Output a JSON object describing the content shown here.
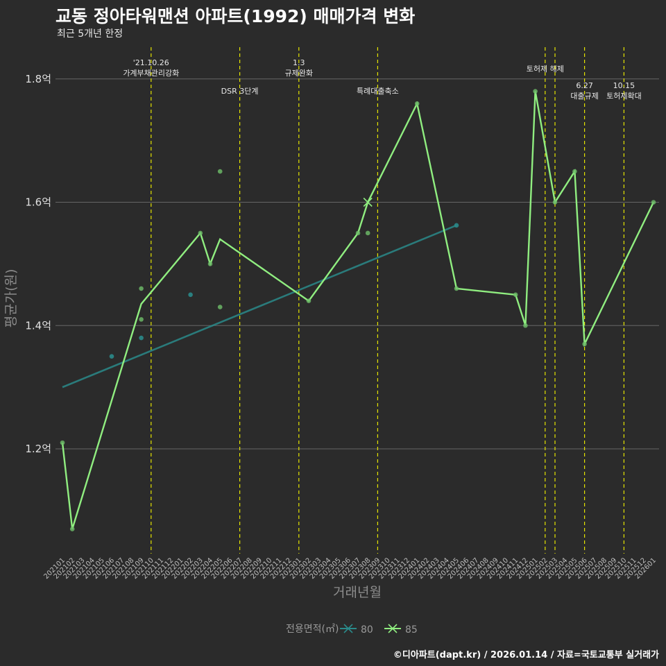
{
  "header": {
    "title": "교동 정아타워맨션 아파트(1992) 매매가격 변화",
    "subtitle": "최근 5개년 한정"
  },
  "caption": "©디아파트(dapt.kr) / 2026.01.14 / 자료=국토교통부 실거래가",
  "colors": {
    "background": "#2b2b2b",
    "grid": "#666666",
    "event_line": "#e5e500",
    "series_80": "#2a8a8a",
    "series_85": "#90ee80"
  },
  "chart_data": {
    "type": "line",
    "title": "교동 정아타워맨션 아파트(1992) 매매가격 변화",
    "xlabel": "거래년월",
    "ylabel": "평균가(원)",
    "ylim": [
      1.07,
      1.85
    ],
    "yticks": [
      {
        "value": 1.2,
        "label": "1.2억"
      },
      {
        "value": 1.4,
        "label": "1.4억"
      },
      {
        "value": 1.6,
        "label": "1.6억"
      },
      {
        "value": 1.8,
        "label": "1.8억"
      }
    ],
    "categories": [
      "202101",
      "202102",
      "202103",
      "202104",
      "202105",
      "202106",
      "202107",
      "202108",
      "202109",
      "202110",
      "202111",
      "202112",
      "202201",
      "202202",
      "202203",
      "202204",
      "202205",
      "202206",
      "202207",
      "202208",
      "202209",
      "202210",
      "202211",
      "202212",
      "202301",
      "202302",
      "202303",
      "202304",
      "202305",
      "202306",
      "202307",
      "202308",
      "202309",
      "202310",
      "202311",
      "202312",
      "202401",
      "202402",
      "202403",
      "202404",
      "202405",
      "202406",
      "202407",
      "202408",
      "202409",
      "202410",
      "202411",
      "202412",
      "202501",
      "202502",
      "202503",
      "202504",
      "202505",
      "202506",
      "202507",
      "202508",
      "202509",
      "202510",
      "202511",
      "202512",
      "202601"
    ],
    "events": [
      {
        "x": "202110",
        "lines": [
          "'21.10.26",
          "가계부채관리강화"
        ],
        "level": 1
      },
      {
        "x": "202207",
        "lines": [
          "DSR 3단계"
        ],
        "level": 2
      },
      {
        "x": "202301",
        "lines": [
          "1.3",
          "규제완화"
        ],
        "level": 1
      },
      {
        "x": "202309",
        "lines": [
          "특례대출축소"
        ],
        "level": 2
      },
      {
        "x": "202502",
        "lines": [
          "토허제 해제"
        ],
        "level": 1
      },
      {
        "x": "202503",
        "lines": [],
        "level": 1
      },
      {
        "x": "202506",
        "lines": [
          "6.27",
          "대출규제"
        ],
        "level": 3
      },
      {
        "x": "202510",
        "lines": [
          "10.15",
          "토허제확대"
        ],
        "level": 3
      }
    ],
    "series": [
      {
        "name": "80",
        "trend": [
          [
            "202101",
            1.3
          ],
          [
            "202405",
            1.5625
          ]
        ],
        "points": [
          [
            "202106",
            1.35
          ],
          [
            "202109",
            1.38
          ],
          [
            "202202",
            1.45
          ],
          [
            "202405",
            1.5625
          ]
        ]
      },
      {
        "name": "85",
        "line": [
          [
            "202101",
            1.21
          ],
          [
            "202102",
            1.07
          ],
          [
            "202109",
            1.435
          ],
          [
            "202203",
            1.55
          ],
          [
            "202204",
            1.5
          ],
          [
            "202205",
            1.54
          ],
          [
            "202302",
            1.44
          ],
          [
            "202307",
            1.55
          ],
          [
            "202308",
            1.6
          ],
          [
            "202401",
            1.76
          ],
          [
            "202405",
            1.46
          ],
          [
            "202411",
            1.45
          ],
          [
            "202412",
            1.4
          ],
          [
            "202501",
            1.78
          ],
          [
            "202503",
            1.6
          ],
          [
            "202505",
            1.65
          ],
          [
            "202506",
            1.37
          ],
          [
            "202601",
            1.6
          ]
        ],
        "points": [
          [
            "202101",
            1.21
          ],
          [
            "202102",
            1.07
          ],
          [
            "202109",
            1.46
          ],
          [
            "202109",
            1.41
          ],
          [
            "202203",
            1.55
          ],
          [
            "202204",
            1.5
          ],
          [
            "202205",
            1.65
          ],
          [
            "202205",
            1.43
          ],
          [
            "202302",
            1.44
          ],
          [
            "202307",
            1.55
          ],
          [
            "202308",
            1.55
          ],
          [
            "202401",
            1.76
          ],
          [
            "202405",
            1.46
          ],
          [
            "202411",
            1.45
          ],
          [
            "202412",
            1.4
          ],
          [
            "202501",
            1.78
          ],
          [
            "202503",
            1.6
          ],
          [
            "202505",
            1.65
          ],
          [
            "202506",
            1.37
          ],
          [
            "202601",
            1.6
          ]
        ],
        "cross": [
          [
            "202308",
            1.6
          ]
        ]
      }
    ],
    "legend": {
      "title": "전용면적(㎡)",
      "items": [
        "80",
        "85"
      ],
      "position": "bottom"
    }
  }
}
